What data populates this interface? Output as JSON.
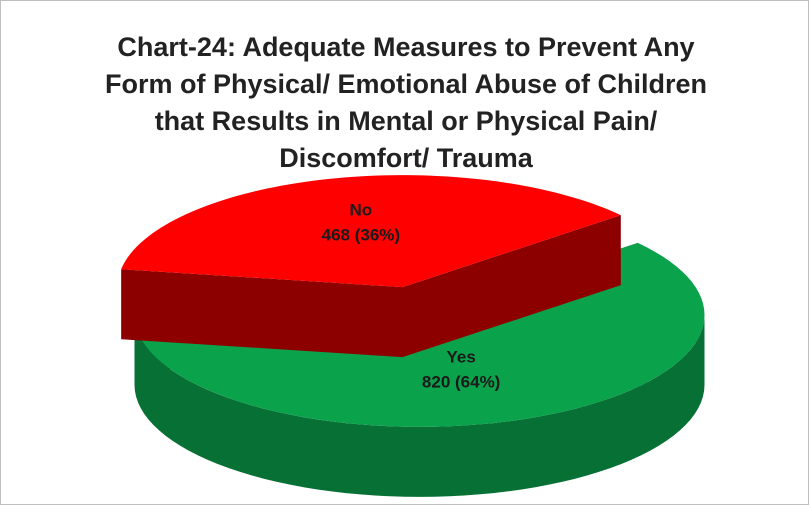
{
  "chart_data": {
    "type": "pie",
    "title": "Chart-24: Adequate Measures to Prevent Any Form of Physical/ Emotional Abuse of Children that Results in Mental or Physical Pain/ Discomfort/ Trauma",
    "categories": [
      "Yes",
      "No"
    ],
    "values": [
      820,
      468
    ],
    "value_labels": [
      "820 (64%)",
      "468 (36%)"
    ],
    "colors": [
      "#0aa24b",
      "#ff0000"
    ]
  }
}
